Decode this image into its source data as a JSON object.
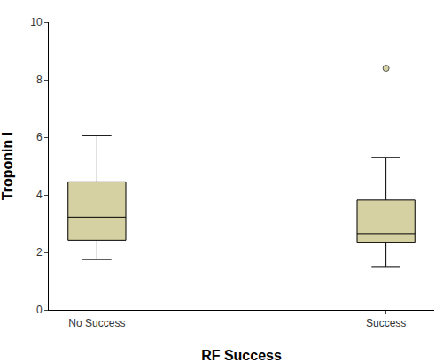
{
  "chart_data": {
    "type": "box",
    "x_label": "RF Success",
    "y_label": "Troponin I",
    "categories": [
      "No Success",
      "Success"
    ],
    "lower": [
      1.75,
      1.48
    ],
    "q1": [
      2.42,
      2.35
    ],
    "median": [
      3.22,
      2.65
    ],
    "q3": [
      4.45,
      3.82
    ],
    "upper": [
      6.05,
      5.3
    ],
    "outliers": [
      [],
      [
        8.4
      ]
    ],
    "color": "#d6d1a2",
    "ylim": [
      0,
      10
    ],
    "yticks": [
      0,
      2,
      4,
      6,
      8,
      10
    ],
    "grid": false
  }
}
